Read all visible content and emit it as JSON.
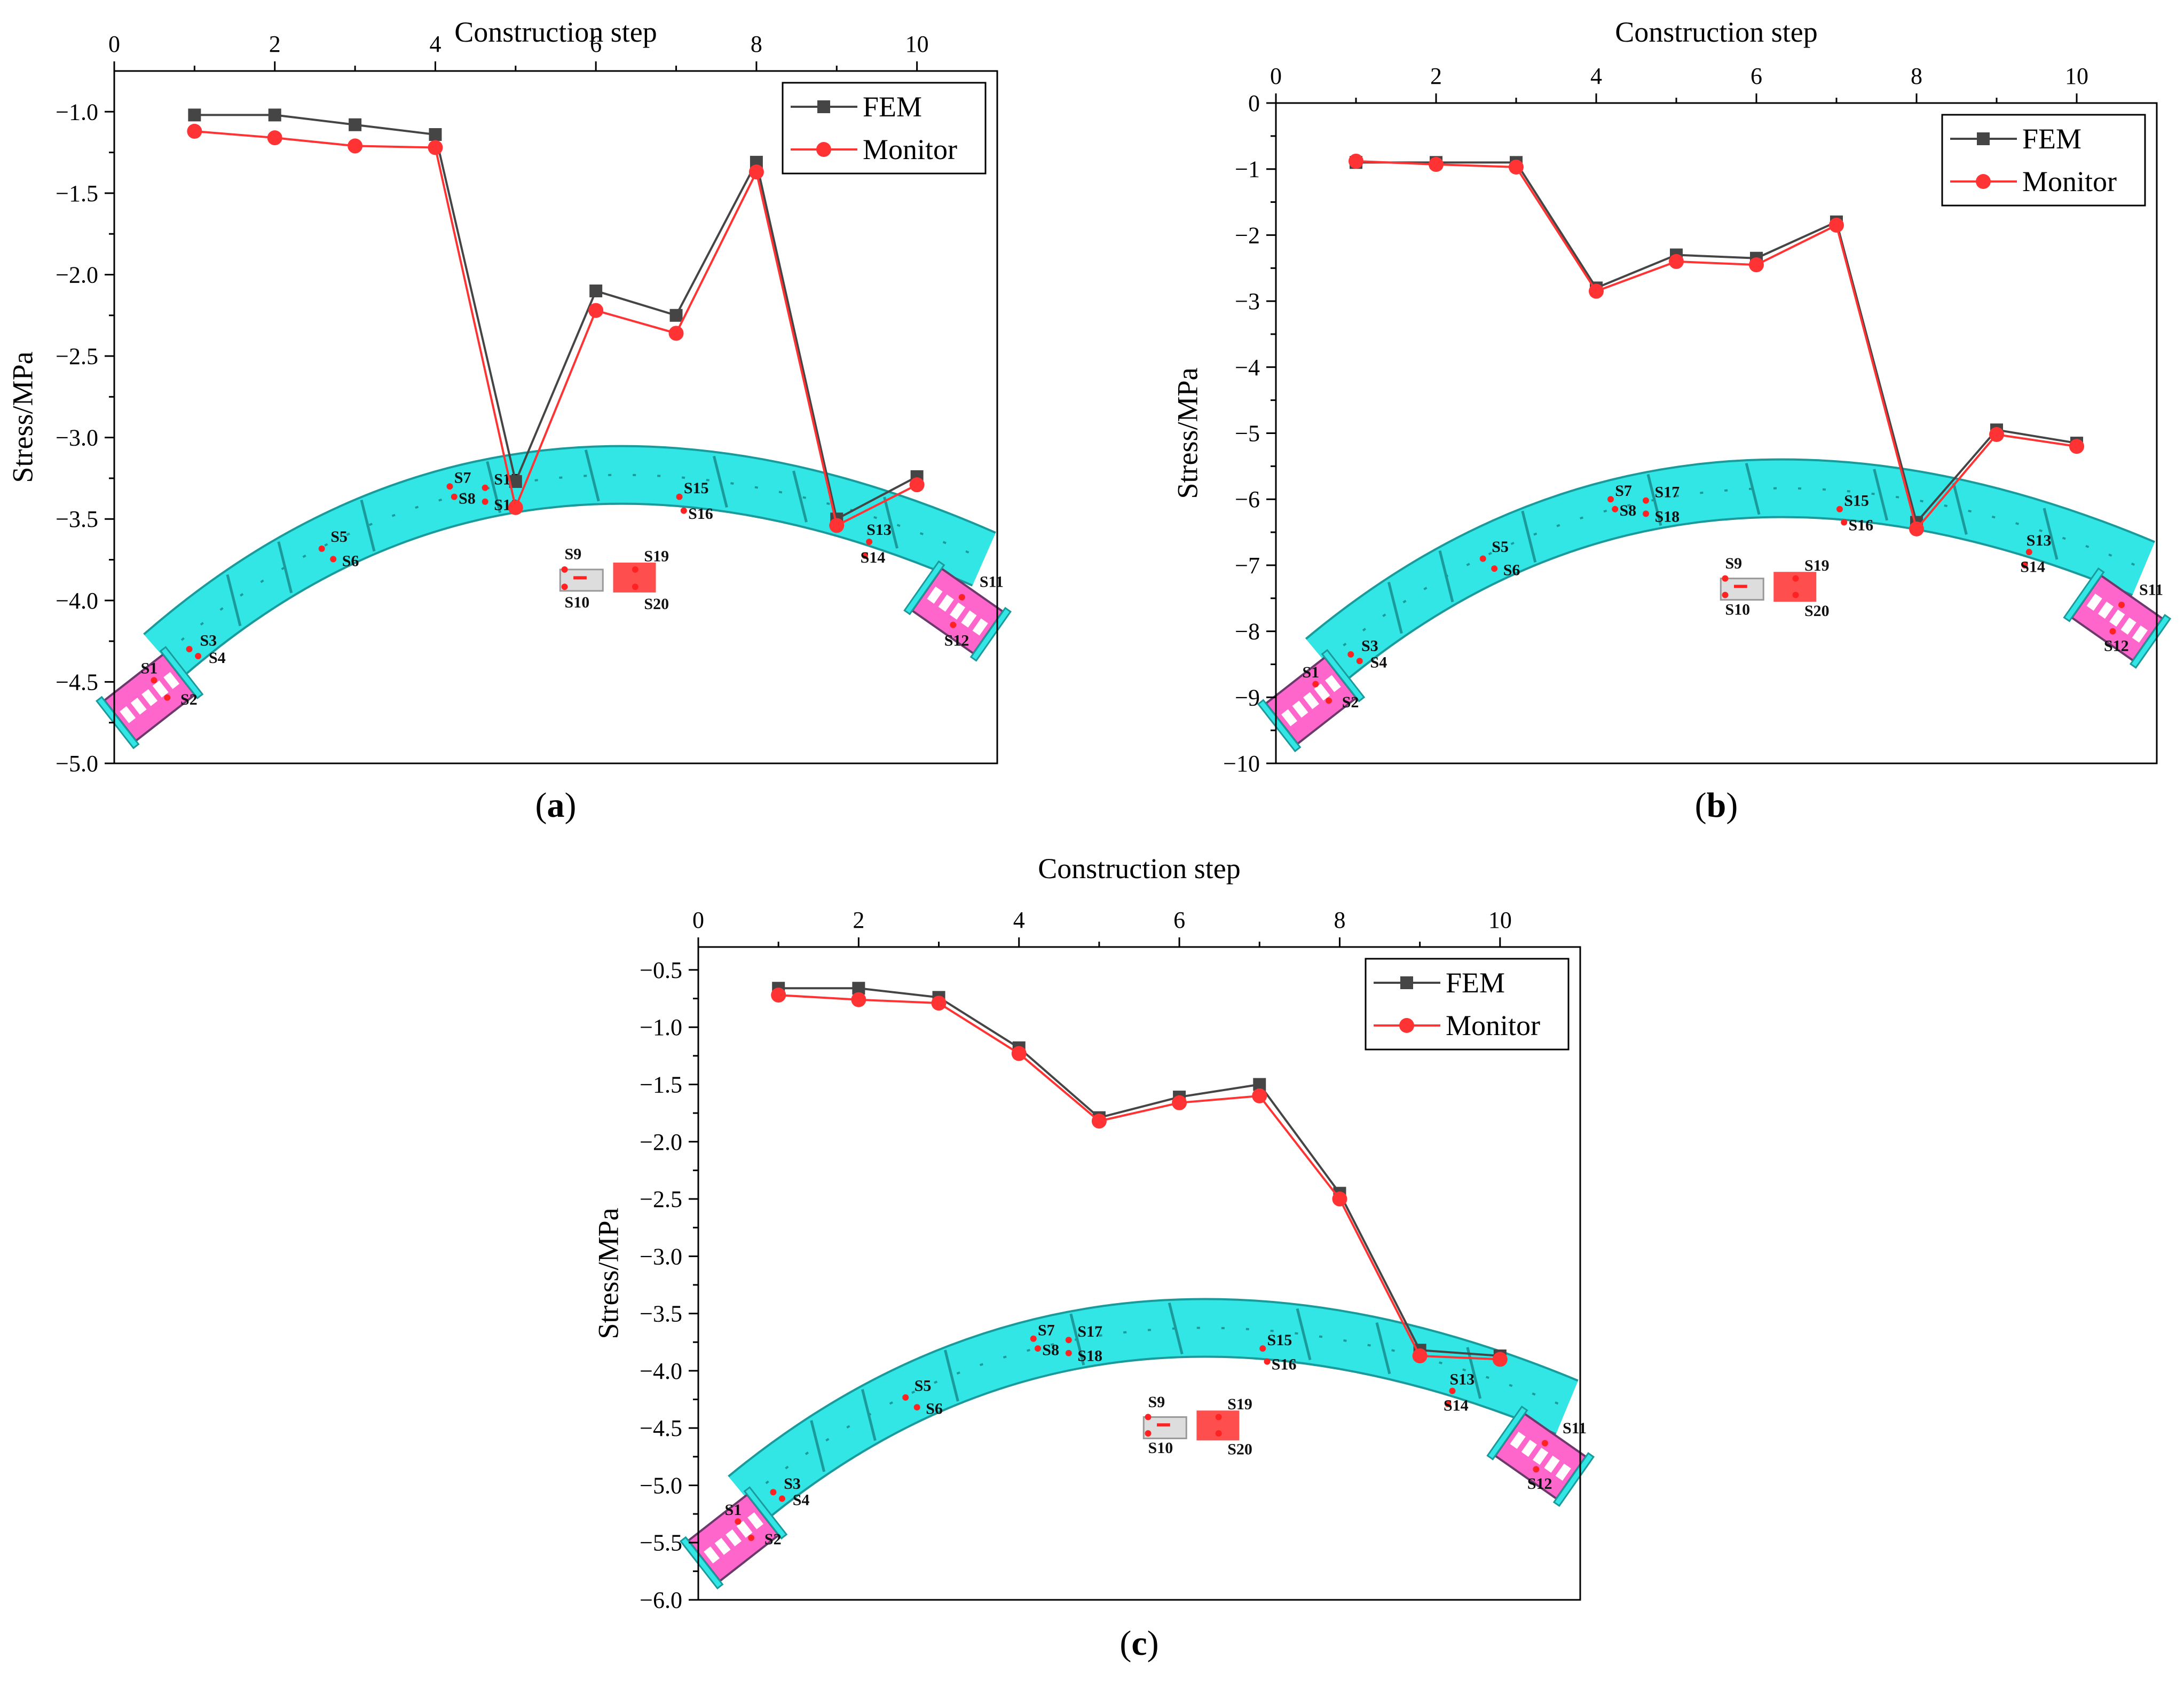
{
  "figure": {
    "colors": {
      "fem": "#454545",
      "monitor": "#ff3333",
      "arch": "#33e6e6",
      "arch_edge": "#1a9a9a",
      "base": "#ff66cc",
      "sensor": "#ff2222"
    },
    "sensors": [
      "S1",
      "S2",
      "S3",
      "S4",
      "S5",
      "S6",
      "S7",
      "S8",
      "S9",
      "S10",
      "S11",
      "S12",
      "S13",
      "S14",
      "S15",
      "S16",
      "S17",
      "S18",
      "S19",
      "S20"
    ]
  },
  "chart_data": [
    {
      "panel_label": "a",
      "type": "line",
      "xlabel": "Construction step",
      "ylabel": "Stress/MPa",
      "xlim": [
        0,
        11
      ],
      "ylim": [
        -5.0,
        -0.75
      ],
      "x_ticks": [
        0,
        2,
        4,
        6,
        8,
        10
      ],
      "x_tick_labels": [
        "0",
        "2",
        "4",
        "6",
        "8",
        "10"
      ],
      "y_ticks": [
        -1.0,
        -1.5,
        -2.0,
        -2.5,
        -3.0,
        -3.5,
        -4.0,
        -4.5,
        -5.0
      ],
      "y_tick_labels": [
        "−1.0",
        "−1.5",
        "−2.0",
        "−2.5",
        "−3.0",
        "−3.5",
        "−4.0",
        "−4.5",
        "−5.0"
      ],
      "x": [
        1,
        2,
        3,
        4,
        5,
        6,
        7,
        8,
        9,
        10
      ],
      "series": [
        {
          "name": "FEM",
          "marker": "square",
          "values": [
            -1.02,
            -1.02,
            -1.08,
            -1.14,
            -3.27,
            -2.1,
            -2.25,
            -1.31,
            -3.5,
            -3.24
          ]
        },
        {
          "name": "Monitor",
          "marker": "circle",
          "values": [
            -1.12,
            -1.16,
            -1.21,
            -1.22,
            -3.43,
            -2.22,
            -2.36,
            -1.37,
            -3.54,
            -3.29
          ]
        }
      ],
      "legend": "top-right"
    },
    {
      "panel_label": "b",
      "type": "line",
      "xlabel": "Construction step",
      "ylabel": "Stress/MPa",
      "xlim": [
        0,
        11
      ],
      "ylim": [
        -10,
        0
      ],
      "x_ticks": [
        0,
        2,
        4,
        6,
        8,
        10
      ],
      "x_tick_labels": [
        "0",
        "2",
        "4",
        "6",
        "8",
        "10"
      ],
      "y_ticks": [
        0,
        -1,
        -2,
        -3,
        -4,
        -5,
        -6,
        -7,
        -8,
        -9,
        -10
      ],
      "y_tick_labels": [
        "0",
        "−1",
        "−2",
        "−3",
        "−4",
        "−5",
        "−6",
        "−7",
        "−8",
        "−9",
        "−10"
      ],
      "x": [
        1,
        2,
        3,
        4,
        5,
        6,
        7,
        8,
        9,
        10
      ],
      "series": [
        {
          "name": "FEM",
          "marker": "square",
          "values": [
            -0.9,
            -0.9,
            -0.9,
            -2.8,
            -2.3,
            -2.35,
            -1.8,
            -6.35,
            -4.95,
            -5.15
          ]
        },
        {
          "name": "Monitor",
          "marker": "circle",
          "values": [
            -0.88,
            -0.93,
            -0.97,
            -2.85,
            -2.4,
            -2.45,
            -1.85,
            -6.45,
            -5.02,
            -5.2
          ]
        }
      ],
      "legend": "top-right"
    },
    {
      "panel_label": "c",
      "type": "line",
      "xlabel": "Construction step",
      "ylabel": "Stress/MPa",
      "xlim": [
        0,
        11
      ],
      "ylim": [
        -6.0,
        -0.3
      ],
      "x_ticks": [
        0,
        2,
        4,
        6,
        8,
        10
      ],
      "x_tick_labels": [
        "0",
        "2",
        "4",
        "6",
        "8",
        "10"
      ],
      "y_ticks": [
        -0.5,
        -1.0,
        -1.5,
        -2.0,
        -2.5,
        -3.0,
        -3.5,
        -4.0,
        -4.5,
        -5.0,
        -5.5,
        -6.0
      ],
      "y_tick_labels": [
        "−0.5",
        "−1.0",
        "−1.5",
        "−2.0",
        "−2.5",
        "−3.0",
        "−3.5",
        "−4.0",
        "−4.5",
        "−5.0",
        "−5.5",
        "−6.0"
      ],
      "x": [
        1,
        2,
        3,
        4,
        5,
        6,
        7,
        8,
        9,
        10
      ],
      "series": [
        {
          "name": "FEM",
          "marker": "square",
          "values": [
            -0.66,
            -0.66,
            -0.74,
            -1.18,
            -1.79,
            -1.61,
            -1.5,
            -2.45,
            -3.82,
            -3.87
          ]
        },
        {
          "name": "Monitor",
          "marker": "circle",
          "values": [
            -0.72,
            -0.76,
            -0.79,
            -1.23,
            -1.82,
            -1.66,
            -1.6,
            -2.5,
            -3.87,
            -3.9
          ]
        }
      ],
      "legend": "top-right"
    }
  ]
}
